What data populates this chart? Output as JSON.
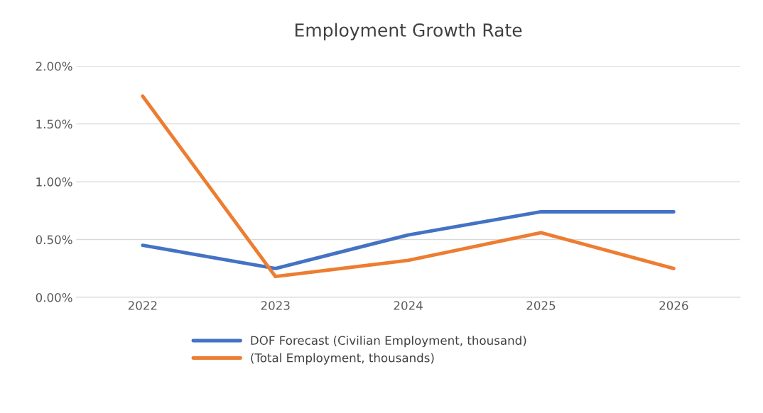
{
  "chart_data": {
    "type": "line",
    "title": "Employment Growth Rate",
    "categories": [
      "2022",
      "2023",
      "2024",
      "2025",
      "2026"
    ],
    "series": [
      {
        "name": "DOF Forecast (Civilian Employment, thousand)",
        "color": "#4472c4",
        "values": [
          0.45,
          0.25,
          0.54,
          0.74,
          0.74
        ]
      },
      {
        "name": "(Total Employment, thousands)",
        "color": "#ed7d31",
        "values": [
          1.74,
          0.18,
          0.32,
          0.56,
          0.25
        ]
      }
    ],
    "ylim": [
      0,
      2
    ],
    "yticks": [
      {
        "value": 0,
        "label": "0.00%"
      },
      {
        "value": 0.5,
        "label": "0.50%"
      },
      {
        "value": 1,
        "label": "1.00%"
      },
      {
        "value": 1.5,
        "label": "1.50%"
      },
      {
        "value": 2,
        "label": "2.00%"
      }
    ],
    "grid": "y",
    "legend": "bottom",
    "marker": "none",
    "line_style": "solid"
  }
}
